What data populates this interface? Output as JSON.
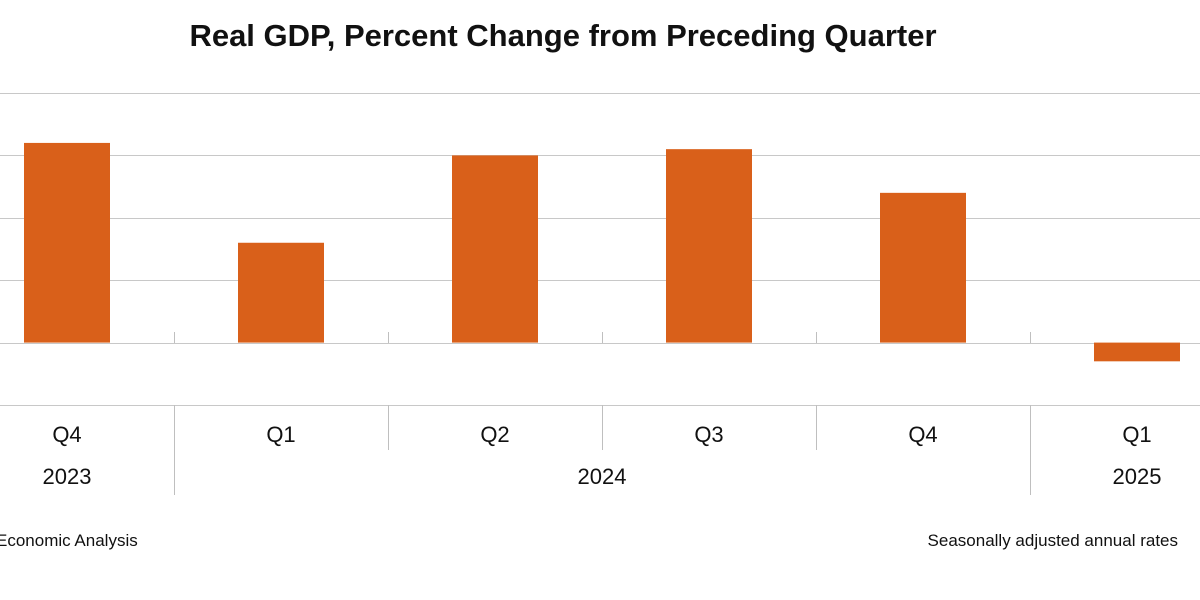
{
  "chart_data": {
    "type": "bar",
    "title": "Real GDP, Percent Change from Preceding Quarter",
    "categories": [
      "Q4",
      "Q1",
      "Q2",
      "Q3",
      "Q4",
      "Q1"
    ],
    "year_groups": [
      {
        "label": "2023",
        "span": 1
      },
      {
        "label": "2024",
        "span": 4
      },
      {
        "label": "2025",
        "span": 1
      }
    ],
    "series": [
      {
        "name": "Real GDP",
        "color": "#D9601A",
        "values": [
          3.2,
          1.6,
          3.0,
          3.1,
          2.4,
          -0.3
        ]
      }
    ],
    "ylim": [
      -1,
      4
    ],
    "ytick_step": 1,
    "grid": true,
    "xlabel": "",
    "ylabel": ""
  },
  "footer": {
    "source": "Economic Analysis",
    "note": "Seasonally adjusted annual rates"
  },
  "colors": {
    "bar": "#D9601A",
    "grid": "#C8C8C8",
    "axis": "#BFBFBF"
  }
}
